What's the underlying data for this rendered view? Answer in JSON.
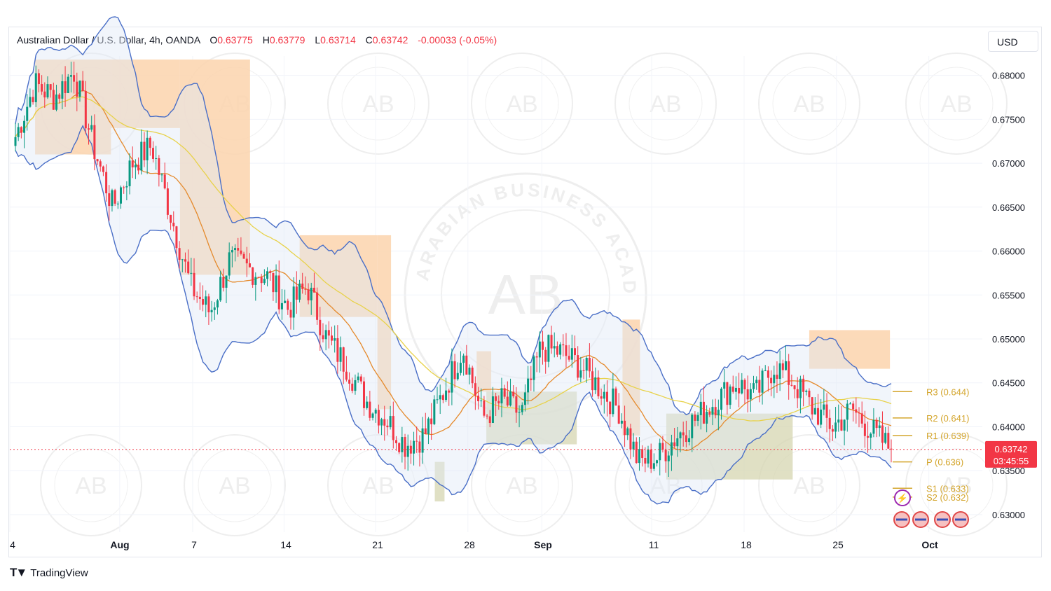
{
  "legend": {
    "symbol": "Australian Dollar / U.S. Dollar, 4h, OANDA",
    "open_label": "O",
    "open": "0.63775",
    "high_label": "H",
    "high": "0.63779",
    "low_label": "L",
    "low": "0.63714",
    "close_label": "C",
    "close": "0.63742",
    "change": "-0.00033 (-0.05%)"
  },
  "currency": "USD",
  "branding": "TradingView",
  "watermark": "ARABIAN BUSINESS ACADEMY",
  "price_tag": {
    "value": "0.63742",
    "countdown": "03:45:55"
  },
  "colors": {
    "up": "#089981",
    "down": "#f23645",
    "bb": "#4a6fc7",
    "ema_fast": "#e58a2c",
    "ema_slow": "#e8d24a",
    "pivot": "#d4a62e"
  },
  "chart_data": {
    "type": "candlestick",
    "timeframe": "4h",
    "ylim": [
      0.628,
      0.6822
    ],
    "y_ticks": [
      "0.68000",
      "0.67500",
      "0.67000",
      "0.66500",
      "0.66000",
      "0.65500",
      "0.65000",
      "0.64500",
      "0.64000",
      "0.63500",
      "0.63000"
    ],
    "x_ticks": [
      "4",
      "Aug",
      "7",
      "14",
      "21",
      "28",
      "Sep",
      "11",
      "18",
      "25",
      "Oct"
    ],
    "close_path": [
      0.673,
      0.679,
      0.6775,
      0.6805,
      0.672,
      0.665,
      0.67,
      0.672,
      0.664,
      0.656,
      0.653,
      0.659,
      0.658,
      0.657,
      0.6535,
      0.656,
      0.65,
      0.647,
      0.643,
      0.641,
      0.638,
      0.639,
      0.644,
      0.649,
      0.641,
      0.643,
      0.6415,
      0.649,
      0.6485,
      0.647,
      0.6445,
      0.642,
      0.636,
      0.6365,
      0.639,
      0.641,
      0.643,
      0.645,
      0.6435,
      0.647,
      0.645,
      0.642,
      0.64,
      0.642,
      0.6395,
      0.6374
    ],
    "pivot_levels": [
      {
        "label": "R3 (0.644)",
        "value": 0.644
      },
      {
        "label": "R2 (0.641)",
        "value": 0.641
      },
      {
        "label": "R1 (0.639)",
        "value": 0.639
      },
      {
        "label": "P (0.636)",
        "value": 0.636
      },
      {
        "label": "S1 (0.633)",
        "value": 0.633
      },
      {
        "label": "S2 (0.632)",
        "value": 0.632
      }
    ],
    "zones": [
      {
        "kind": "supply",
        "start_x": 0.026,
        "end_x": 0.104,
        "y_low": 0.671,
        "y_high": 0.6818
      },
      {
        "kind": "supply",
        "start_x": 0.104,
        "end_x": 0.175,
        "y_low": 0.674,
        "y_high": 0.6818
      },
      {
        "kind": "supply",
        "start_x": 0.175,
        "end_x": 0.247,
        "y_low": 0.6573,
        "y_high": 0.6818
      },
      {
        "kind": "supply",
        "start_x": 0.298,
        "end_x": 0.378,
        "y_low": 0.6525,
        "y_high": 0.6618
      },
      {
        "kind": "supply",
        "start_x": 0.378,
        "end_x": 0.392,
        "y_low": 0.642,
        "y_high": 0.6618
      },
      {
        "kind": "supply",
        "start_x": 0.48,
        "end_x": 0.495,
        "y_low": 0.644,
        "y_high": 0.6486
      },
      {
        "kind": "supply",
        "start_x": 0.63,
        "end_x": 0.648,
        "y_low": 0.639,
        "y_high": 0.6522
      },
      {
        "kind": "supply",
        "start_x": 0.822,
        "end_x": 0.905,
        "y_low": 0.6466,
        "y_high": 0.651
      },
      {
        "kind": "demand",
        "start_x": 0.437,
        "end_x": 0.447,
        "y_low": 0.6315,
        "y_high": 0.636
      },
      {
        "kind": "demand",
        "start_x": 0.49,
        "end_x": 0.583,
        "y_low": 0.638,
        "y_high": 0.644
      },
      {
        "kind": "demand",
        "start_x": 0.675,
        "end_x": 0.805,
        "y_low": 0.634,
        "y_high": 0.6415
      }
    ]
  }
}
